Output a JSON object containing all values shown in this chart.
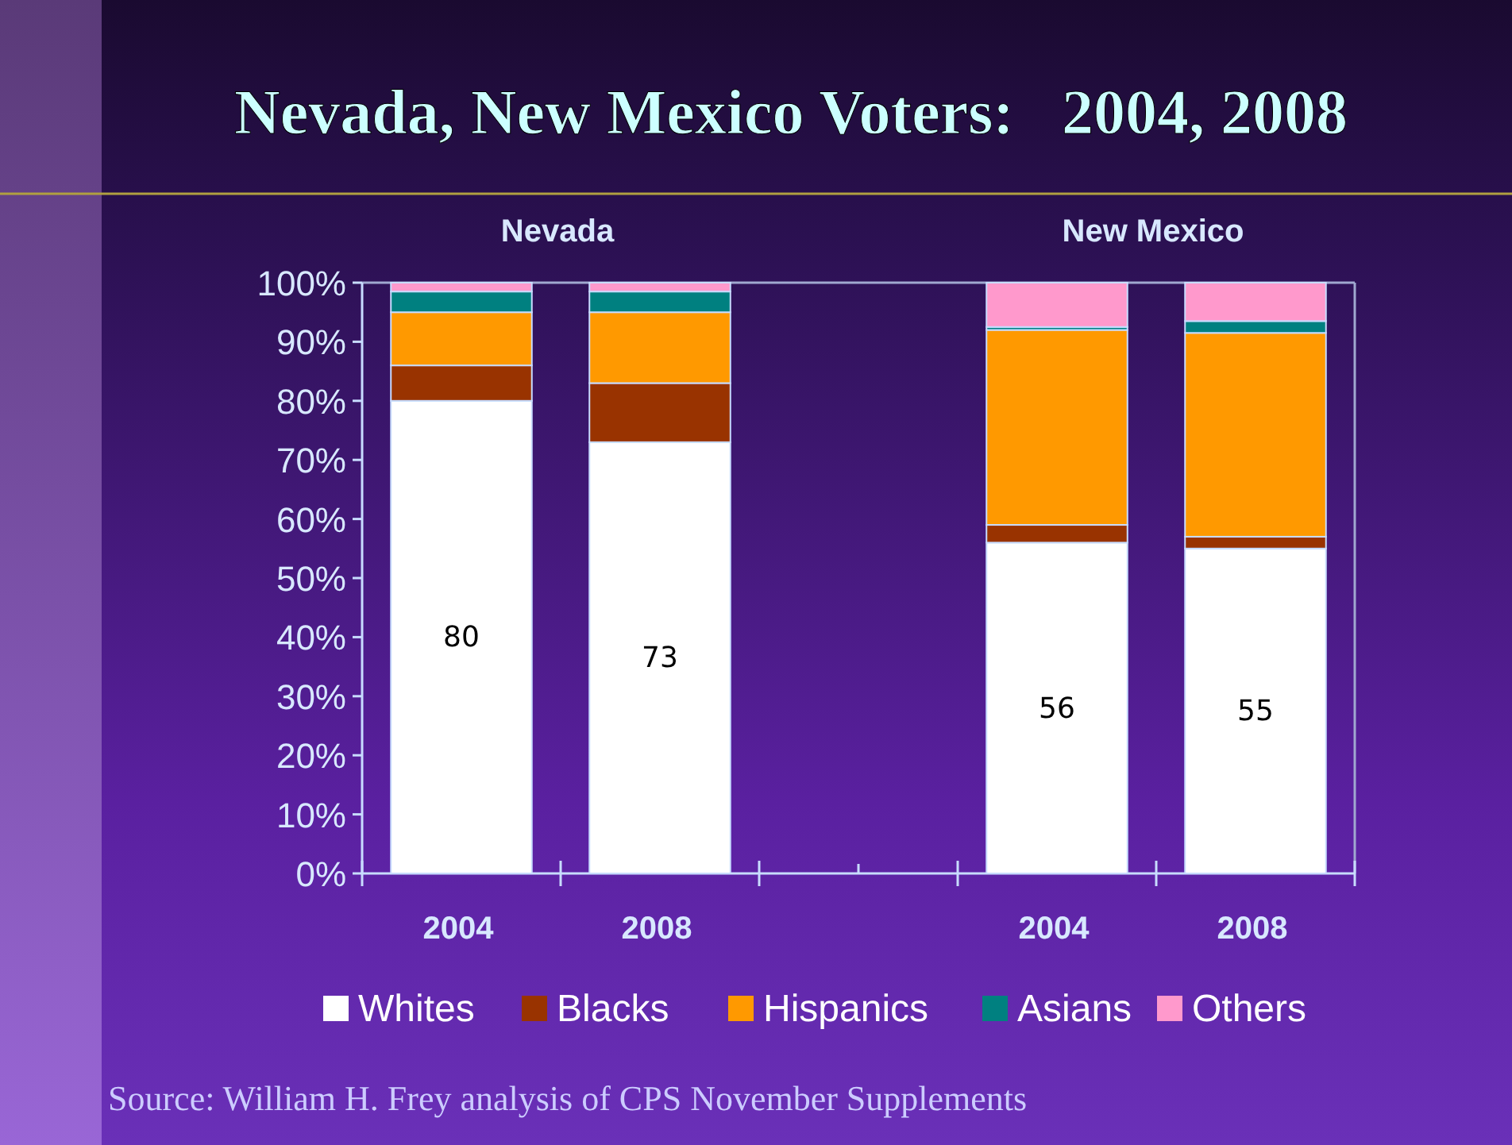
{
  "chart_data": {
    "type": "bar",
    "title": "Nevada, New Mexico Voters:   2004, 2008",
    "stacked": true,
    "categories": [
      "2004",
      "2008",
      null,
      "2004",
      "2008"
    ],
    "series": [
      {
        "name": "Whites",
        "color": "#ffffff",
        "values": [
          80,
          73,
          null,
          56,
          55
        ],
        "value_labels": [
          "80",
          "73",
          null,
          "56",
          "55"
        ]
      },
      {
        "name": "Blacks",
        "color": "#993300",
        "values": [
          6,
          10,
          null,
          3,
          2
        ]
      },
      {
        "name": "Hispanics",
        "color": "#ff9900",
        "values": [
          9,
          12,
          null,
          33,
          34.5
        ]
      },
      {
        "name": "Asians",
        "color": "#008080",
        "values": [
          3.5,
          3.5,
          null,
          0.5,
          2
        ]
      },
      {
        "name": "Others",
        "color": "#ff99cc",
        "values": [
          1.5,
          1.5,
          null,
          7.5,
          6.5
        ]
      }
    ],
    "ylim": [
      0,
      100
    ],
    "yticks": [
      {
        "value": 0,
        "label": "0%"
      },
      {
        "value": 10,
        "label": "10%"
      },
      {
        "value": 20,
        "label": "20%"
      },
      {
        "value": 30,
        "label": "30%"
      },
      {
        "value": 40,
        "label": "40%"
      },
      {
        "value": 50,
        "label": "50%"
      },
      {
        "value": 60,
        "label": "60%"
      },
      {
        "value": 70,
        "label": "70%"
      },
      {
        "value": 80,
        "label": "80%"
      },
      {
        "value": 90,
        "label": "90%"
      },
      {
        "value": 100,
        "label": "100%"
      }
    ],
    "grid": false,
    "legend": "bottom",
    "annotations": [
      "Nevada",
      "New Mexico",
      "Source: William H. Frey analysis of  CPS November Supplements"
    ]
  }
}
